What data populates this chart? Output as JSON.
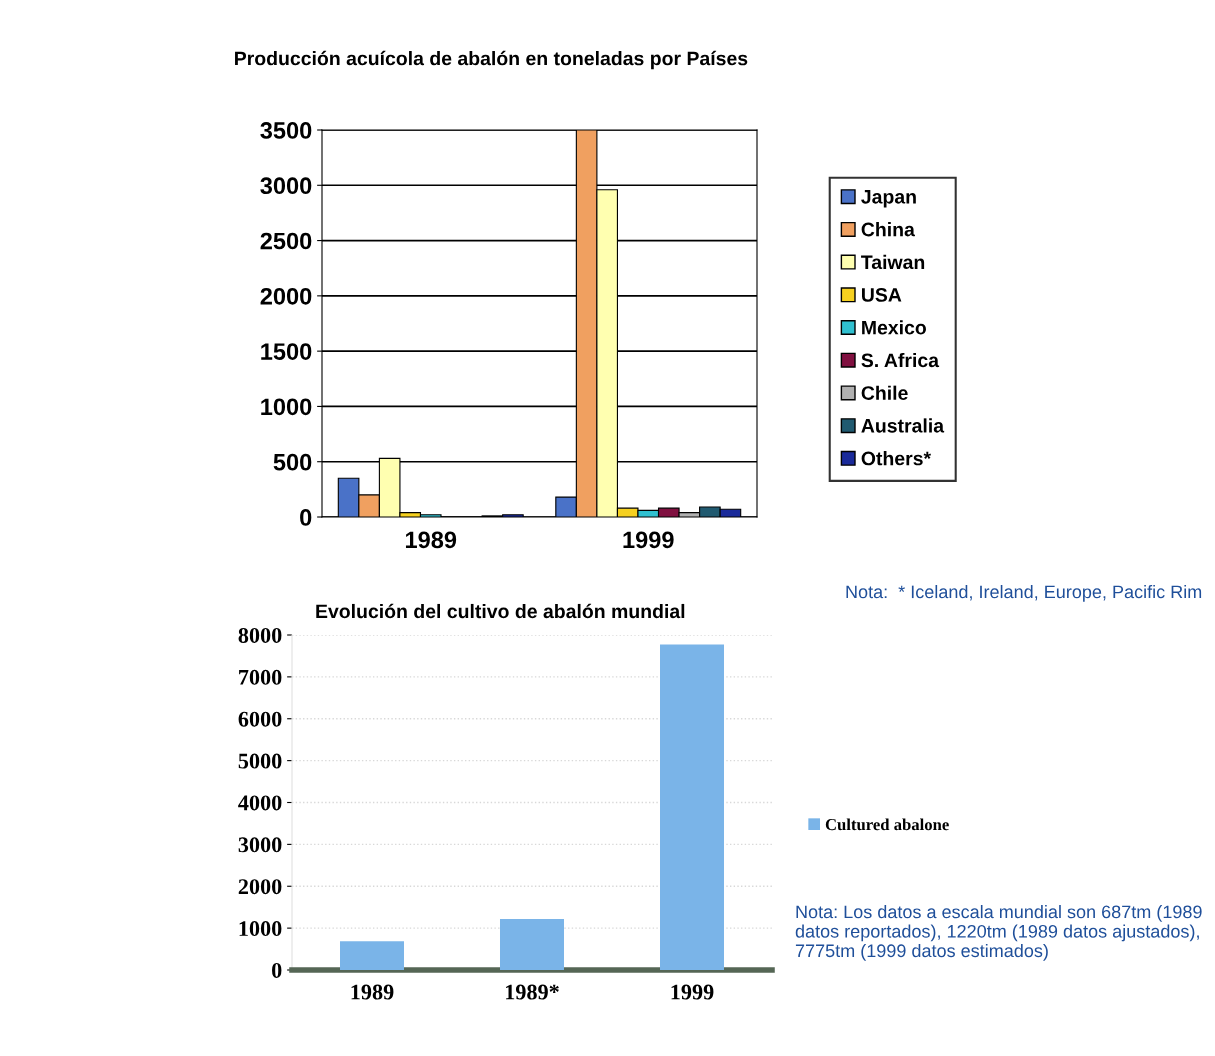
{
  "chart_data": [
    {
      "type": "bar",
      "title": "Producción acuícola de abalón en toneladas por Países",
      "categories": [
        "1989",
        "1999"
      ],
      "series": [
        {
          "name": "Japan",
          "color": "#4a72c8",
          "values": [
            350,
            180
          ]
        },
        {
          "name": "China",
          "color": "#f0a060",
          "values": [
            200,
            3500
          ]
        },
        {
          "name": "Taiwan",
          "color": "#ffffb0",
          "values": [
            530,
            2960
          ]
        },
        {
          "name": "USA",
          "color": "#f5d020",
          "values": [
            40,
            80
          ]
        },
        {
          "name": "Mexico",
          "color": "#30c0d0",
          "values": [
            20,
            60
          ]
        },
        {
          "name": "S. Africa",
          "color": "#801040",
          "values": [
            0,
            80
          ]
        },
        {
          "name": "Chile",
          "color": "#b0b0b0",
          "values": [
            0,
            40
          ]
        },
        {
          "name": "Australia",
          "color": "#205a70",
          "values": [
            10,
            90
          ]
        },
        {
          "name": "Others*",
          "color": "#1a2a9a",
          "values": [
            20,
            70
          ]
        }
      ],
      "ylim": [
        0,
        3500
      ],
      "yticks": [
        0,
        500,
        1000,
        1500,
        2000,
        2500,
        3000,
        3500
      ],
      "grid": "y",
      "legend": "right",
      "annotations": [
        "Nota:  * Iceland, Ireland, Europe, Pacific Rim"
      ]
    },
    {
      "type": "bar",
      "title": "Evolución del cultivo de abalón mundial",
      "categories": [
        "1989",
        "1989*",
        "1999"
      ],
      "series": [
        {
          "name": "Cultured abalone",
          "color": "#7ab4e8",
          "values": [
            687,
            1220,
            7775
          ]
        }
      ],
      "ylim": [
        0,
        8000
      ],
      "yticks": [
        0,
        1000,
        2000,
        3000,
        4000,
        5000,
        6000,
        7000,
        8000
      ],
      "grid": "y",
      "legend": "right",
      "annotations": [
        "Nota: Los datos a escala mundial son 687tm (1989 datos reportados), 1220tm (1989 datos ajustados), 7775tm (1999 datos estimados)"
      ]
    }
  ]
}
